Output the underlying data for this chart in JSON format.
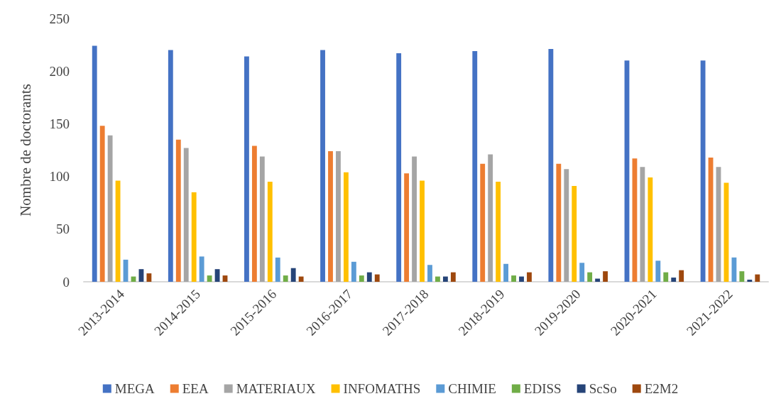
{
  "chart_data": {
    "type": "bar",
    "ylabel": "Nombre de doctorants",
    "categories": [
      "2013-2014",
      "2014-2015",
      "2015-2016",
      "2016-2017",
      "2017-2018",
      "2018-2019",
      "2019-2020",
      "2020-2021",
      "2021-2022"
    ],
    "series": [
      {
        "name": "MEGA",
        "color": "#4472c4",
        "values": [
          224,
          220,
          214,
          220,
          217,
          219,
          221,
          210,
          210
        ]
      },
      {
        "name": "EEA",
        "color": "#ed7d31",
        "values": [
          148,
          135,
          129,
          124,
          103,
          112,
          112,
          117,
          118
        ]
      },
      {
        "name": "MATERIAUX",
        "color": "#a5a5a5",
        "values": [
          139,
          127,
          119,
          124,
          119,
          121,
          107,
          109,
          109
        ]
      },
      {
        "name": "INFOMATHS",
        "color": "#ffc000",
        "values": [
          96,
          85,
          95,
          104,
          96,
          95,
          91,
          99,
          94
        ]
      },
      {
        "name": "CHIMIE",
        "color": "#5b9bd5",
        "values": [
          21,
          24,
          23,
          19,
          16,
          17,
          18,
          20,
          23
        ]
      },
      {
        "name": "EDISS",
        "color": "#70ad47",
        "values": [
          5,
          6,
          6,
          6,
          5,
          6,
          9,
          9,
          10
        ]
      },
      {
        "name": "ScSo",
        "color": "#264478",
        "values": [
          12,
          12,
          13,
          9,
          5,
          5,
          3,
          4,
          2
        ]
      },
      {
        "name": "E2M2",
        "color": "#9e480e",
        "values": [
          8,
          6,
          5,
          7,
          9,
          9,
          10,
          11,
          7
        ]
      }
    ],
    "ylim": [
      0,
      250
    ],
    "yticks": [
      0,
      50,
      100,
      150,
      200,
      250
    ],
    "grid": false,
    "legend": "bottom"
  }
}
